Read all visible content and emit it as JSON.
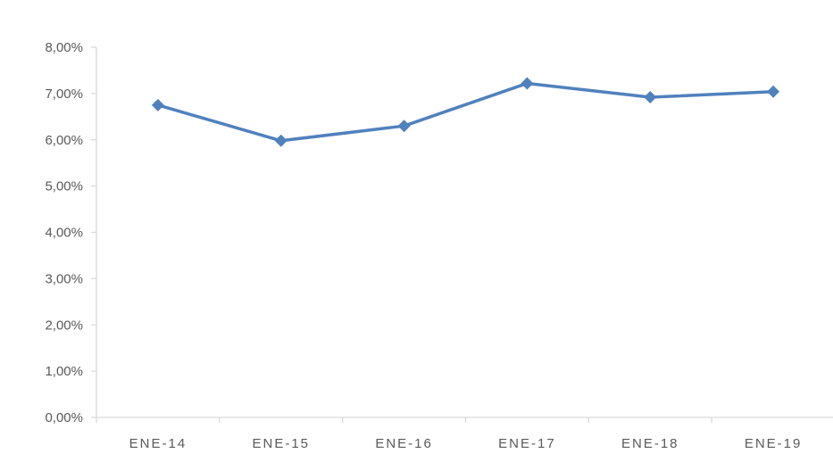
{
  "chart_data": {
    "type": "line",
    "title": "",
    "xlabel": "",
    "ylabel": "",
    "categories": [
      "ENE-14",
      "ENE-15",
      "ENE-16",
      "ENE-17",
      "ENE-18",
      "ENE-19"
    ],
    "series": [
      {
        "values": [
          6.75,
          5.98,
          6.3,
          7.22,
          6.92,
          7.04
        ],
        "color": "#4f81bd"
      }
    ],
    "ylim": [
      0,
      8
    ],
    "y_ticks": [
      0,
      1,
      2,
      3,
      4,
      5,
      6,
      7,
      8
    ],
    "y_tick_labels": [
      "0,00%",
      "1,00%",
      "2,00%",
      "3,00%",
      "4,00%",
      "5,00%",
      "6,00%",
      "7,00%",
      "8,00%"
    ],
    "grid": false,
    "legend": "none",
    "marker": "diamond",
    "axis_color": "#d9d9d9",
    "label_color": "#595959"
  }
}
